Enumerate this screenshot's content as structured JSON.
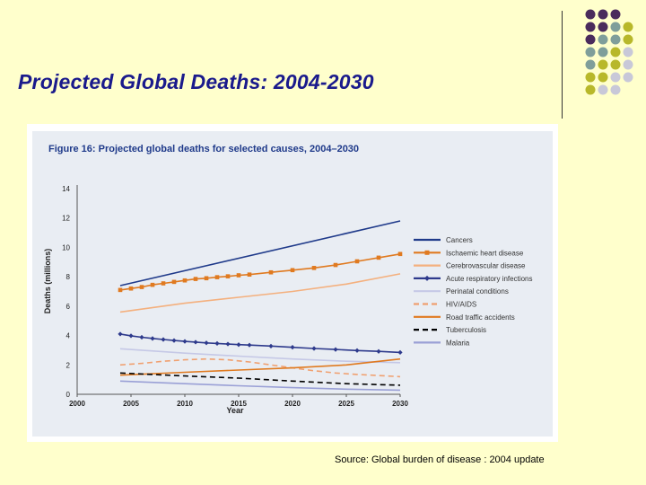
{
  "slide": {
    "title": "Projected Global Deaths: 2004-2030",
    "source": "Source: Global burden of disease : 2004 update"
  },
  "decor": {
    "dot_colors": [
      "#4a2b5c",
      "#7f9e9a",
      "#b8b82a",
      "#c8c8d8"
    ]
  },
  "chart_data": {
    "type": "line",
    "title": "Figure 16: Projected global deaths for selected causes, 2004–2030",
    "xlabel": "Year",
    "ylabel": "Deaths (millions)",
    "xlim": [
      2000,
      2030
    ],
    "ylim": [
      0,
      14
    ],
    "xticks": [
      2000,
      2005,
      2010,
      2015,
      2020,
      2025,
      2030
    ],
    "yticks": [
      0,
      2,
      4,
      6,
      8,
      10,
      12,
      14
    ],
    "grid": false,
    "legend_position": "right",
    "series": [
      {
        "name": "Cancers",
        "color": "#1f3a8a",
        "style": "solid",
        "marker": "none",
        "x": [
          2004,
          2030
        ],
        "y": [
          7.4,
          11.8
        ]
      },
      {
        "name": "Ischaemic heart disease",
        "color": "#e07a20",
        "style": "solid",
        "marker": "square",
        "x": [
          2004,
          2005,
          2006,
          2007,
          2008,
          2009,
          2010,
          2011,
          2012,
          2013,
          2014,
          2015,
          2016,
          2018,
          2020,
          2022,
          2024,
          2026,
          2028,
          2030
        ],
        "y": [
          7.1,
          7.2,
          7.3,
          7.45,
          7.55,
          7.65,
          7.75,
          7.85,
          7.9,
          7.97,
          8.03,
          8.1,
          8.15,
          8.3,
          8.45,
          8.6,
          8.8,
          9.05,
          9.3,
          9.55
        ]
      },
      {
        "name": "Cerebrovascular disease",
        "color": "#f4b07e",
        "style": "solid",
        "marker": "none",
        "x": [
          2004,
          2010,
          2015,
          2020,
          2025,
          2030
        ],
        "y": [
          5.6,
          6.2,
          6.6,
          7.0,
          7.5,
          8.2
        ]
      },
      {
        "name": "Acute respiratory infections",
        "color": "#2e3a8c",
        "style": "solid",
        "marker": "diamond",
        "x": [
          2004,
          2005,
          2006,
          2007,
          2008,
          2009,
          2010,
          2011,
          2012,
          2013,
          2014,
          2015,
          2016,
          2018,
          2020,
          2022,
          2024,
          2026,
          2028,
          2030
        ],
        "y": [
          4.1,
          3.98,
          3.88,
          3.8,
          3.73,
          3.66,
          3.6,
          3.55,
          3.5,
          3.46,
          3.42,
          3.38,
          3.35,
          3.28,
          3.2,
          3.12,
          3.05,
          2.98,
          2.92,
          2.85
        ]
      },
      {
        "name": "Perinatal conditions",
        "color": "#c5c8e6",
        "style": "solid",
        "marker": "none",
        "x": [
          2004,
          2010,
          2015,
          2020,
          2025,
          2030
        ],
        "y": [
          3.1,
          2.8,
          2.6,
          2.4,
          2.25,
          2.15
        ]
      },
      {
        "name": "HIV/AIDS",
        "color": "#f0a070",
        "style": "dashed",
        "marker": "none",
        "x": [
          2004,
          2006,
          2008,
          2010,
          2012,
          2014,
          2016,
          2018,
          2020,
          2022,
          2024,
          2026,
          2028,
          2030
        ],
        "y": [
          2.0,
          2.1,
          2.25,
          2.35,
          2.4,
          2.35,
          2.2,
          2.0,
          1.8,
          1.6,
          1.45,
          1.35,
          1.28,
          1.2
        ]
      },
      {
        "name": "Road traffic accidents",
        "color": "#e07a20",
        "style": "solid",
        "marker": "none",
        "x": [
          2004,
          2010,
          2015,
          2020,
          2025,
          2030
        ],
        "y": [
          1.3,
          1.5,
          1.65,
          1.8,
          2.0,
          2.4
        ]
      },
      {
        "name": "Tuberculosis",
        "color": "#000000",
        "style": "dashed",
        "marker": "none",
        "x": [
          2004,
          2010,
          2015,
          2020,
          2025,
          2030
        ],
        "y": [
          1.45,
          1.25,
          1.1,
          0.9,
          0.72,
          0.62
        ]
      },
      {
        "name": "Malaria",
        "color": "#9aa0d6",
        "style": "solid",
        "marker": "none",
        "x": [
          2004,
          2010,
          2015,
          2020,
          2025,
          2030
        ],
        "y": [
          0.9,
          0.72,
          0.58,
          0.45,
          0.35,
          0.28
        ]
      }
    ]
  }
}
